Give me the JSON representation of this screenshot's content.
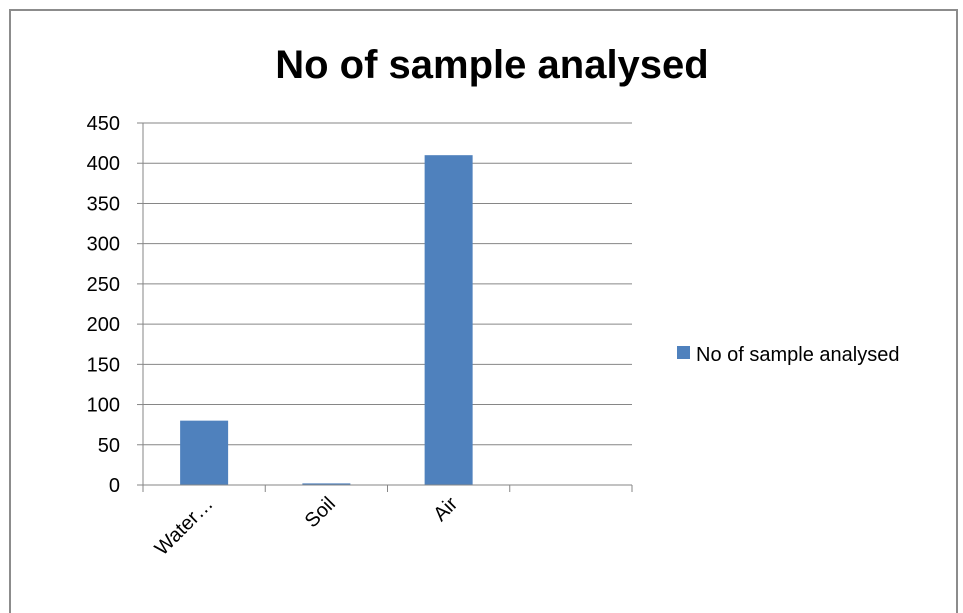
{
  "chart_data": {
    "type": "bar",
    "title": "No of  sample analysed",
    "categories": [
      "Water…",
      "Soil",
      "Air",
      ""
    ],
    "series": [
      {
        "name": "No of  sample analysed",
        "values": [
          80,
          2,
          410,
          0
        ],
        "color": "#4f81bd"
      }
    ],
    "xlabel": "",
    "ylabel": "",
    "ylim": [
      0,
      450
    ],
    "yticks": [
      0,
      50,
      100,
      150,
      200,
      250,
      300,
      350,
      400,
      450
    ],
    "grid": true,
    "legend_position": "right"
  }
}
